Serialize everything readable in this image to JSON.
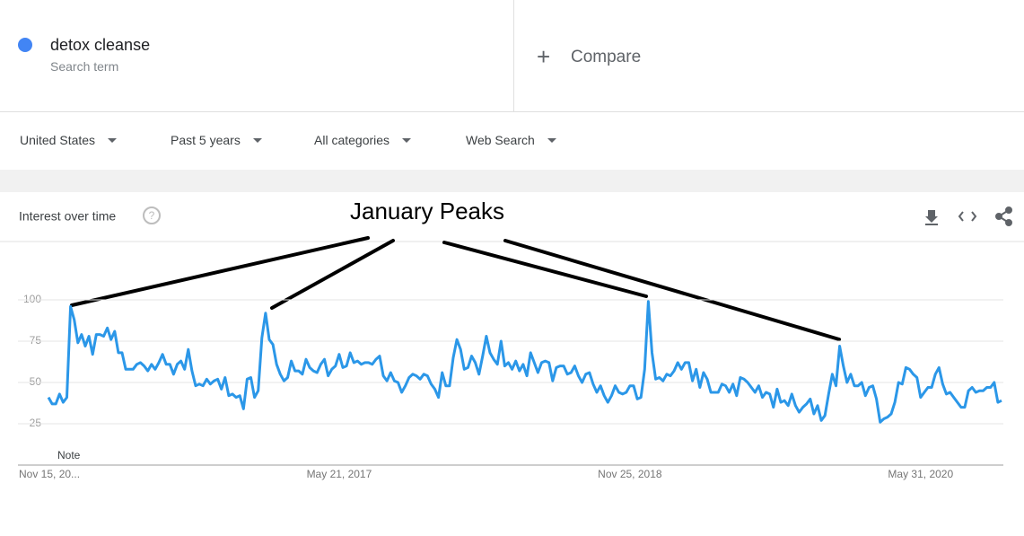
{
  "compare": "Compare",
  "search_term_label": "Search term",
  "filters": [
    "United States",
    "Past 5 years",
    "All categories",
    "Web Search"
  ],
  "card_title": "Interest over time",
  "chart_data": {
    "type": "line",
    "annotation": "January Peaks",
    "note": "Note",
    "categories": [
      "Nov 15, 20...",
      null,
      null,
      null,
      null,
      null,
      null,
      null,
      null,
      null,
      null,
      null,
      null,
      null,
      null,
      null,
      null,
      null,
      null,
      null,
      null,
      null,
      null,
      null,
      null,
      null,
      null,
      null,
      null,
      null,
      null,
      null,
      null,
      null,
      null,
      null,
      null,
      null,
      null,
      null,
      null,
      null,
      null,
      null,
      null,
      null,
      null,
      null,
      null,
      null,
      null,
      null,
      null,
      null,
      null,
      null,
      null,
      null,
      null,
      null,
      null,
      null,
      null,
      null,
      null,
      null,
      null,
      null,
      null,
      null,
      null,
      null,
      null,
      null,
      null,
      null,
      null,
      null,
      null,
      "May 21, 2017",
      null,
      null,
      null,
      null,
      null,
      null,
      null,
      null,
      null,
      null,
      null,
      null,
      null,
      null,
      null,
      null,
      null,
      null,
      null,
      null,
      null,
      null,
      null,
      null,
      null,
      null,
      null,
      null,
      null,
      null,
      null,
      null,
      null,
      null,
      null,
      null,
      null,
      null,
      null,
      null,
      null,
      null,
      null,
      null,
      null,
      null,
      null,
      null,
      null,
      null,
      null,
      null,
      null,
      null,
      null,
      null,
      null,
      null,
      null,
      null,
      null,
      null,
      null,
      null,
      null,
      null,
      null,
      null,
      null,
      null,
      null,
      null,
      null,
      null,
      null,
      null,
      null,
      null,
      "Nov 25, 2018",
      null,
      null,
      null,
      null,
      null,
      null,
      null,
      null,
      null,
      null,
      null,
      null,
      null,
      null,
      null,
      null,
      null,
      null,
      null,
      null,
      null,
      null,
      null,
      null,
      null,
      null,
      null,
      null,
      null,
      null,
      null,
      null,
      null,
      null,
      null,
      null,
      null,
      null,
      null,
      null,
      null,
      null,
      null,
      null,
      null,
      null,
      null,
      null,
      null,
      null,
      null,
      null,
      null,
      null,
      null,
      null,
      null,
      null,
      null,
      null,
      null,
      null,
      null,
      null,
      null,
      null,
      null,
      null,
      null,
      null,
      null,
      null,
      null,
      null,
      null,
      null,
      null,
      null,
      "May 31, 2020",
      null,
      null,
      null,
      null,
      null,
      null,
      null,
      null,
      null,
      null,
      null,
      null,
      null,
      null,
      null,
      null,
      null,
      null,
      null,
      null,
      null,
      null
    ],
    "series": [
      {
        "name": "detox cleanse",
        "color": "#2b97e8",
        "values": [
          41,
          37,
          37,
          43,
          38,
          41,
          96,
          88,
          74,
          79,
          72,
          78,
          67,
          79,
          79,
          78,
          83,
          76,
          81,
          68,
          68,
          58,
          58,
          58,
          61,
          62,
          60,
          57,
          61,
          58,
          62,
          67,
          61,
          61,
          55,
          61,
          63,
          58,
          70,
          57,
          48,
          49,
          48,
          52,
          49,
          51,
          52,
          46,
          53,
          42,
          43,
          41,
          42,
          34,
          52,
          53,
          41,
          45,
          77,
          92,
          76,
          73,
          61,
          55,
          51,
          53,
          63,
          57,
          57,
          55,
          64,
          59,
          57,
          56,
          61,
          64,
          54,
          58,
          60,
          67,
          59,
          60,
          68,
          62,
          63,
          61,
          62,
          62,
          61,
          64,
          66,
          54,
          51,
          56,
          51,
          50,
          44,
          48,
          53,
          55,
          54,
          52,
          55,
          54,
          49,
          46,
          41,
          56,
          48,
          48,
          65,
          76,
          70,
          58,
          59,
          66,
          62,
          55,
          66,
          78,
          68,
          64,
          61,
          75,
          60,
          62,
          58,
          63,
          57,
          61,
          54,
          68,
          62,
          56,
          62,
          63,
          62,
          51,
          59,
          60,
          60,
          55,
          56,
          60,
          54,
          50,
          55,
          56,
          49,
          44,
          48,
          42,
          38,
          42,
          48,
          44,
          43,
          44,
          48,
          48,
          40,
          41,
          58,
          99,
          68,
          52,
          53,
          51,
          55,
          54,
          57,
          62,
          58,
          62,
          62,
          51,
          58,
          47,
          56,
          52,
          44,
          44,
          44,
          49,
          48,
          44,
          49,
          42,
          53,
          52,
          50,
          47,
          44,
          48,
          41,
          44,
          43,
          35,
          46,
          38,
          39,
          36,
          43,
          36,
          32,
          35,
          37,
          40,
          31,
          36,
          27,
          30,
          43,
          55,
          48,
          72,
          60,
          50,
          55,
          48,
          48,
          50,
          42,
          47,
          48,
          40,
          26,
          28,
          29,
          31,
          38,
          50,
          49,
          59,
          58,
          55,
          53,
          41,
          44,
          47,
          47,
          55,
          59,
          49,
          43,
          44,
          41,
          38,
          35,
          35,
          45,
          47,
          44,
          45,
          45,
          47,
          47,
          50,
          38,
          39
        ]
      }
    ],
    "ylim": [
      0,
      100
    ],
    "yticks": [
      25,
      50,
      75,
      100
    ],
    "grid": true
  }
}
